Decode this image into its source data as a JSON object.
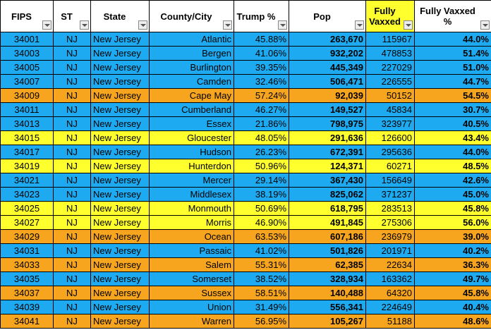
{
  "table": {
    "header": [
      "FIPS",
      "ST",
      "State",
      "County/City",
      "Trump %",
      "Pop",
      "Fully Vaxxed",
      "Fully Vaxxed %"
    ],
    "rows": [
      [
        "34001",
        "NJ",
        "New Jersey",
        "Atlantic",
        "45.88%",
        "263,670",
        "115967",
        "44.0%"
      ],
      [
        "34003",
        "NJ",
        "New Jersey",
        "Bergen",
        "41.06%",
        "932,202",
        "478853",
        "51.4%"
      ],
      [
        "34005",
        "NJ",
        "New Jersey",
        "Burlington",
        "39.35%",
        "445,349",
        "227029",
        "51.0%"
      ],
      [
        "34007",
        "NJ",
        "New Jersey",
        "Camden",
        "32.46%",
        "506,471",
        "226555",
        "44.7%"
      ],
      [
        "34009",
        "NJ",
        "New Jersey",
        "Cape May",
        "57.24%",
        "92,039",
        "50152",
        "54.5%"
      ],
      [
        "34011",
        "NJ",
        "New Jersey",
        "Cumberland",
        "46.27%",
        "149,527",
        "45834",
        "30.7%"
      ],
      [
        "34013",
        "NJ",
        "New Jersey",
        "Essex",
        "21.86%",
        "798,975",
        "323977",
        "40.5%"
      ],
      [
        "34015",
        "NJ",
        "New Jersey",
        "Gloucester",
        "48.05%",
        "291,636",
        "126600",
        "43.4%"
      ],
      [
        "34017",
        "NJ",
        "New Jersey",
        "Hudson",
        "26.23%",
        "672,391",
        "295636",
        "44.0%"
      ],
      [
        "34019",
        "NJ",
        "New Jersey",
        "Hunterdon",
        "50.96%",
        "124,371",
        "60271",
        "48.5%"
      ],
      [
        "34021",
        "NJ",
        "New Jersey",
        "Mercer",
        "29.14%",
        "367,430",
        "156649",
        "42.6%"
      ],
      [
        "34023",
        "NJ",
        "New Jersey",
        "Middlesex",
        "38.19%",
        "825,062",
        "371237",
        "45.0%"
      ],
      [
        "34025",
        "NJ",
        "New Jersey",
        "Monmouth",
        "50.69%",
        "618,795",
        "283513",
        "45.8%"
      ],
      [
        "34027",
        "NJ",
        "New Jersey",
        "Morris",
        "46.90%",
        "491,845",
        "275306",
        "56.0%"
      ],
      [
        "34029",
        "NJ",
        "New Jersey",
        "Ocean",
        "63.53%",
        "607,186",
        "236979",
        "39.0%"
      ],
      [
        "34031",
        "NJ",
        "New Jersey",
        "Passaic",
        "41.02%",
        "501,826",
        "201971",
        "40.2%"
      ],
      [
        "34033",
        "NJ",
        "New Jersey",
        "Salem",
        "55.31%",
        "62,385",
        "22634",
        "36.3%"
      ],
      [
        "34035",
        "NJ",
        "New Jersey",
        "Somerset",
        "38.52%",
        "328,934",
        "163362",
        "49.7%"
      ],
      [
        "34037",
        "NJ",
        "New Jersey",
        "Sussex",
        "58.51%",
        "140,488",
        "64320",
        "45.8%"
      ],
      [
        "34039",
        "NJ",
        "New Jersey",
        "Union",
        "31.49%",
        "556,341",
        "224649",
        "40.4%"
      ],
      [
        "34041",
        "NJ",
        "New Jersey",
        "Warren",
        "56.95%",
        "105,267",
        "51188",
        "48.6%"
      ]
    ],
    "row_colors": [
      "#1eaaf1",
      "#1eaaf1",
      "#1eaaf1",
      "#1eaaf1",
      "#f7a51f",
      "#1eaaf1",
      "#1eaaf1",
      "#ffff2e",
      "#1eaaf1",
      "#ffff2e",
      "#1eaaf1",
      "#1eaaf1",
      "#ffff2e",
      "#ffff2e",
      "#f7a51f",
      "#1eaaf1",
      "#f7a51f",
      "#1eaaf1",
      "#f7a51f",
      "#1eaaf1",
      "#f7a51f"
    ]
  }
}
